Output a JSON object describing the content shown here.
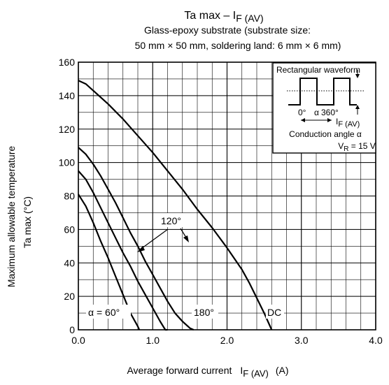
{
  "chart_data": {
    "type": "line",
    "title_main": "Ta max – I",
    "title_sub": "F (AV)",
    "subtitle_line1": "Glass-epoxy substrate (substrate size:",
    "subtitle_line2": "50 mm × 50 mm, soldering land: 6 mm × 6 mm)",
    "xlabel_main": "Average forward current",
    "xlabel_symbol": "I",
    "xlabel_sub": "F (AV)",
    "xlabel_unit": "(A)",
    "ylabel_line1": "Maximum allowable temperature",
    "ylabel_line2": "Ta max    (°C)",
    "xlim": [
      0,
      4
    ],
    "ylim": [
      0,
      160
    ],
    "x_ticks": [
      {
        "value": 0,
        "label": "0.0"
      },
      {
        "value": 1,
        "label": "1.0"
      },
      {
        "value": 2,
        "label": "2.0"
      },
      {
        "value": 3,
        "label": "3.0"
      },
      {
        "value": 4,
        "label": "4.0"
      }
    ],
    "y_ticks": [
      {
        "value": 0,
        "label": "0"
      },
      {
        "value": 20,
        "label": "20"
      },
      {
        "value": 40,
        "label": "40"
      },
      {
        "value": 60,
        "label": "60"
      },
      {
        "value": 80,
        "label": "80"
      },
      {
        "value": 100,
        "label": "100"
      },
      {
        "value": 120,
        "label": "120"
      },
      {
        "value": 140,
        "label": "140"
      },
      {
        "value": 160,
        "label": "160"
      }
    ],
    "grid_minor_x_step": 0.2,
    "grid_minor_y_step": 10,
    "grid": true,
    "series": [
      {
        "name": "α = 60°",
        "points": [
          [
            0,
            81
          ],
          [
            0.1,
            74
          ],
          [
            0.2,
            64
          ],
          [
            0.3,
            53
          ],
          [
            0.4,
            43
          ],
          [
            0.5,
            32
          ],
          [
            0.6,
            21
          ],
          [
            0.7,
            10
          ],
          [
            0.8,
            2
          ],
          [
            0.82,
            0
          ]
        ]
      },
      {
        "name": "120°",
        "points": [
          [
            0,
            95
          ],
          [
            0.1,
            90
          ],
          [
            0.2,
            82
          ],
          [
            0.3,
            73
          ],
          [
            0.4,
            64
          ],
          [
            0.5,
            55
          ],
          [
            0.6,
            46
          ],
          [
            0.7,
            38
          ],
          [
            0.8,
            29
          ],
          [
            0.9,
            21
          ],
          [
            1.0,
            13
          ],
          [
            1.1,
            5
          ],
          [
            1.17,
            0
          ],
          [
            1.2,
            0
          ]
        ]
      },
      {
        "name": "180°",
        "points": [
          [
            0,
            109
          ],
          [
            0.1,
            105
          ],
          [
            0.2,
            99
          ],
          [
            0.3,
            92
          ],
          [
            0.4,
            84
          ],
          [
            0.5,
            76
          ],
          [
            0.6,
            67
          ],
          [
            0.7,
            58
          ],
          [
            0.8,
            50
          ],
          [
            0.9,
            41
          ],
          [
            1.0,
            33
          ],
          [
            1.1,
            25
          ],
          [
            1.2,
            17
          ],
          [
            1.3,
            10
          ],
          [
            1.4,
            5
          ],
          [
            1.5,
            1
          ],
          [
            1.55,
            0
          ]
        ]
      },
      {
        "name": "DC",
        "points": [
          [
            0,
            149
          ],
          [
            0.1,
            147
          ],
          [
            0.2,
            143
          ],
          [
            0.4,
            135
          ],
          [
            0.6,
            126
          ],
          [
            0.8,
            116
          ],
          [
            1.0,
            106
          ],
          [
            1.2,
            95
          ],
          [
            1.4,
            84
          ],
          [
            1.6,
            72
          ],
          [
            1.8,
            61
          ],
          [
            2.0,
            49
          ],
          [
            2.2,
            36
          ],
          [
            2.3,
            28
          ],
          [
            2.4,
            19
          ],
          [
            2.5,
            10
          ],
          [
            2.55,
            5
          ],
          [
            2.6,
            0
          ]
        ]
      }
    ],
    "annotations": [
      {
        "id": "a60",
        "text": "α = 60°"
      },
      {
        "id": "a120",
        "text": "120°"
      },
      {
        "id": "a180",
        "text": "180°"
      },
      {
        "id": "adc",
        "text": "DC"
      }
    ],
    "inset": {
      "title": "Rectangular waveform",
      "label_0": "0°",
      "label_alpha": "α",
      "label_360": "360°",
      "label_if_symbol": "I",
      "label_if_sub": "F (AV)",
      "conduction": "Conduction angle α",
      "vr_symbol": "V",
      "vr_sub": "R",
      "vr_value": " = 15 V"
    }
  }
}
